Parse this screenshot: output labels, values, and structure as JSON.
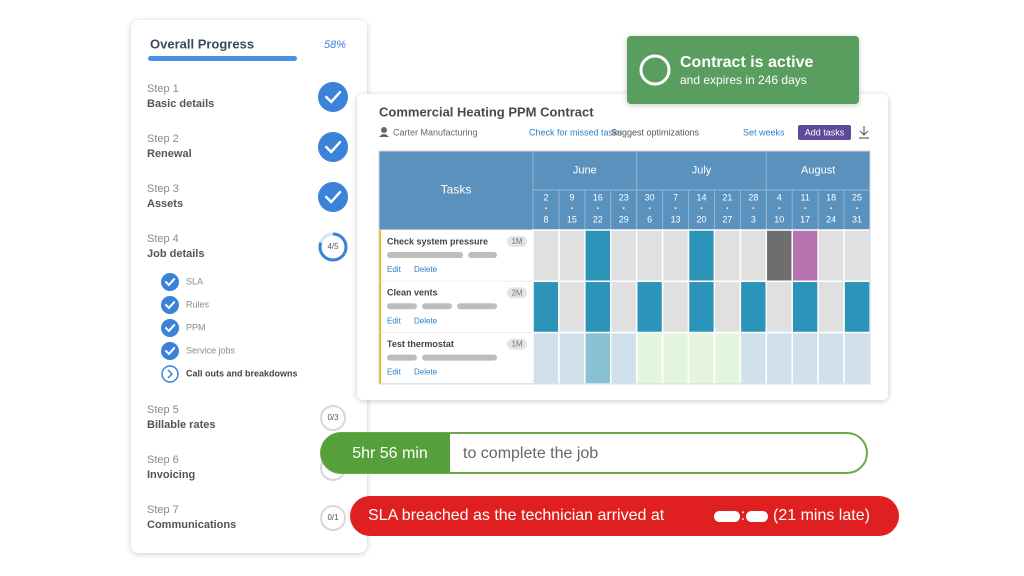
{
  "progress": {
    "title": "Overall Progress",
    "percent": "58%",
    "steps": [
      {
        "step": "Step 1",
        "name": "Basic details"
      },
      {
        "step": "Step 2",
        "name": "Renewal"
      },
      {
        "step": "Step 3",
        "name": "Assets"
      },
      {
        "step": "Step 4",
        "name": "Job details",
        "badge": "4/5",
        "substeps": [
          "SLA",
          "Rules",
          "PPM",
          "Service jobs",
          "Call outs and breakdowns"
        ]
      },
      {
        "step": "Step 5",
        "name": "Billable rates",
        "badge": "0/3"
      },
      {
        "step": "Step 6",
        "name": "Invoicing"
      },
      {
        "step": "Step 7",
        "name": "Communications",
        "badge": "0/1"
      }
    ]
  },
  "status": {
    "title": "Contract is active",
    "subtitle": "and expires in 246 days"
  },
  "contract": {
    "title": "Commercial Heating PPM Contract",
    "client": "Carter Manufacturing",
    "actions": [
      "Check for missed tasks",
      "Suggest optimizations",
      "Set weeks"
    ],
    "add_button": "Add tasks",
    "tasks_header": "Tasks",
    "months": [
      "June",
      "July",
      "August"
    ],
    "weeks": [
      {
        "start": "2",
        "end": "8"
      },
      {
        "start": "9",
        "end": "15"
      },
      {
        "start": "16",
        "end": "22"
      },
      {
        "start": "23",
        "end": "29"
      },
      {
        "start": "30",
        "end": "6"
      },
      {
        "start": "7",
        "end": "13"
      },
      {
        "start": "14",
        "end": "20"
      },
      {
        "start": "21",
        "end": "27"
      },
      {
        "start": "28",
        "end": "3"
      },
      {
        "start": "4",
        "end": "10"
      },
      {
        "start": "11",
        "end": "17"
      },
      {
        "start": "18",
        "end": "24"
      },
      {
        "start": "25",
        "end": "31"
      }
    ],
    "rows": [
      {
        "task": "Check system pressure",
        "frequency": "1M",
        "edit": "Edit",
        "delete": "Delete",
        "cells": [
          "#e0e0e0",
          "#e0e0e0",
          "#2b94b8",
          "#e0e0e0",
          "#e0e0e0",
          "#e0e0e0",
          "#2b94b8",
          "#e0e0e0",
          "#e0e0e0",
          "#6e6e6e",
          "#b574b0",
          "#e0e0e0",
          "#e0e0e0"
        ]
      },
      {
        "task": "Clean vents",
        "frequency": "2M",
        "edit": "Edit",
        "delete": "Delete",
        "cells": [
          "#2b94b8",
          "#e0e0e0",
          "#2b94b8",
          "#e0e0e0",
          "#2b94b8",
          "#e0e0e0",
          "#2b94b8",
          "#e0e0e0",
          "#2b94b8",
          "#e0e0e0",
          "#2b94b8",
          "#e0e0e0",
          "#2b94b8"
        ]
      },
      {
        "task": "Test thermostat",
        "frequency": "1M",
        "edit": "Edit",
        "delete": "Delete",
        "cells": [
          "#cfe0ea",
          "#cfe0ea",
          "#88c0d4",
          "#cfe0ea",
          "#e3f5dc",
          "#e3f5dc",
          "#e3f5dc",
          "#e3f5dc",
          "#cfe0ea",
          "#cfe0ea",
          "#cfe0ea",
          "#cfe0ea",
          "#cfe0ea"
        ]
      }
    ]
  },
  "timer": {
    "duration": "5hr 56 min",
    "label": "to complete the job"
  },
  "sla": {
    "message": "SLA breached as the technician arrived at",
    "separator": ":",
    "delay": "(21 mins late)"
  }
}
